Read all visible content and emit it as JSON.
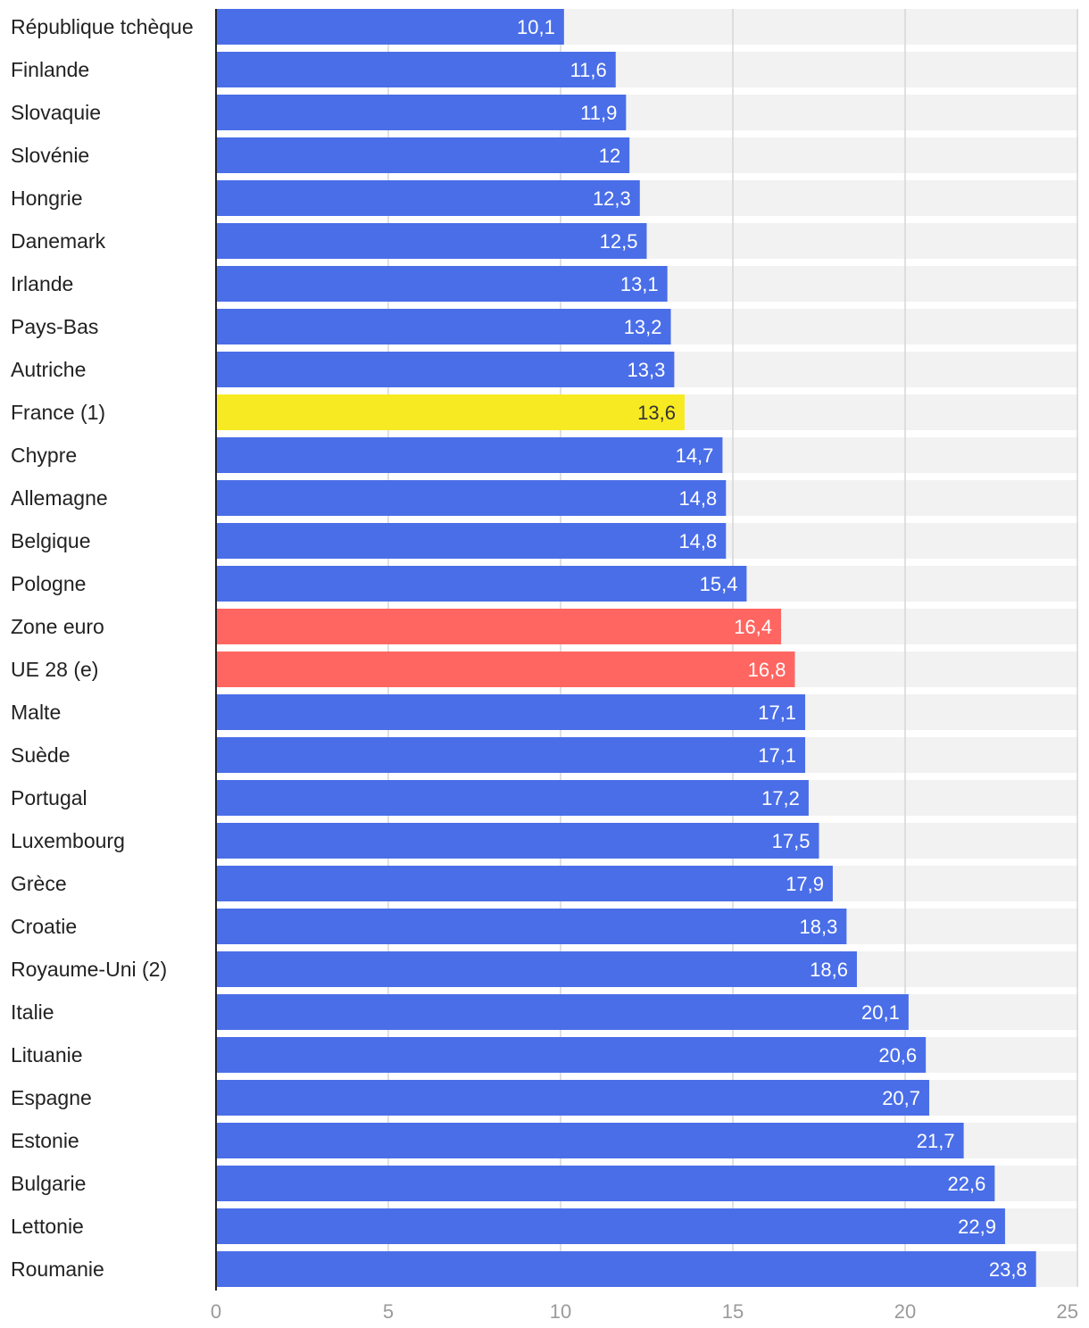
{
  "chart_data": {
    "type": "bar",
    "orientation": "horizontal",
    "title": "",
    "xlabel": "",
    "ylabel": "",
    "xlim": [
      0,
      25
    ],
    "xticks": [
      0,
      5,
      10,
      15,
      20,
      25
    ],
    "xtick_labels": [
      "0",
      "5",
      "10",
      "15",
      "20",
      "25"
    ],
    "grid": true,
    "colors": {
      "default": "#4a6ee8",
      "highlight_france": "#f8ea22",
      "highlight_aggregate": "#ff6661",
      "track": "#f2f2f2",
      "gridline": "#d6d6d6",
      "axis": "#222222"
    },
    "bars": [
      {
        "category": "République tchèque",
        "value": 10.1,
        "label": "10,1",
        "color_key": "default"
      },
      {
        "category": "Finlande",
        "value": 11.6,
        "label": "11,6",
        "color_key": "default"
      },
      {
        "category": "Slovaquie",
        "value": 11.9,
        "label": "11,9",
        "color_key": "default"
      },
      {
        "category": "Slovénie",
        "value": 12,
        "label": "12",
        "color_key": "default"
      },
      {
        "category": "Hongrie",
        "value": 12.3,
        "label": "12,3",
        "color_key": "default"
      },
      {
        "category": "Danemark",
        "value": 12.5,
        "label": "12,5",
        "color_key": "default"
      },
      {
        "category": "Irlande",
        "value": 13.1,
        "label": "13,1",
        "color_key": "default"
      },
      {
        "category": "Pays-Bas",
        "value": 13.2,
        "label": "13,2",
        "color_key": "default"
      },
      {
        "category": "Autriche",
        "value": 13.3,
        "label": "13,3",
        "color_key": "default"
      },
      {
        "category": "France (1)",
        "value": 13.6,
        "label": "13,6",
        "color_key": "highlight_france"
      },
      {
        "category": "Chypre",
        "value": 14.7,
        "label": "14,7",
        "color_key": "default"
      },
      {
        "category": "Allemagne",
        "value": 14.8,
        "label": "14,8",
        "color_key": "default"
      },
      {
        "category": "Belgique",
        "value": 14.8,
        "label": "14,8",
        "color_key": "default"
      },
      {
        "category": "Pologne",
        "value": 15.4,
        "label": "15,4",
        "color_key": "default"
      },
      {
        "category": "Zone euro",
        "value": 16.4,
        "label": "16,4",
        "color_key": "highlight_aggregate"
      },
      {
        "category": "UE 28 (e)",
        "value": 16.8,
        "label": "16,8",
        "color_key": "highlight_aggregate"
      },
      {
        "category": "Malte",
        "value": 17.1,
        "label": "17,1",
        "color_key": "default"
      },
      {
        "category": "Suède",
        "value": 17.1,
        "label": "17,1",
        "color_key": "default"
      },
      {
        "category": "Portugal",
        "value": 17.2,
        "label": "17,2",
        "color_key": "default"
      },
      {
        "category": "Luxembourg",
        "value": 17.5,
        "label": "17,5",
        "color_key": "default"
      },
      {
        "category": "Grèce",
        "value": 17.9,
        "label": "17,9",
        "color_key": "default"
      },
      {
        "category": "Croatie",
        "value": 18.3,
        "label": "18,3",
        "color_key": "default"
      },
      {
        "category": "Royaume-Uni (2)",
        "value": 18.6,
        "label": "18,6",
        "color_key": "default"
      },
      {
        "category": "Italie",
        "value": 20.1,
        "label": "20,1",
        "color_key": "default"
      },
      {
        "category": "Lituanie",
        "value": 20.6,
        "label": "20,6",
        "color_key": "default"
      },
      {
        "category": "Espagne",
        "value": 20.7,
        "label": "20,7",
        "color_key": "default"
      },
      {
        "category": "Estonie",
        "value": 21.7,
        "label": "21,7",
        "color_key": "default"
      },
      {
        "category": "Bulgarie",
        "value": 22.6,
        "label": "22,6",
        "color_key": "default"
      },
      {
        "category": "Lettonie",
        "value": 22.9,
        "label": "22,9",
        "color_key": "default"
      },
      {
        "category": "Roumanie",
        "value": 23.8,
        "label": "23,8",
        "color_key": "default"
      }
    ]
  }
}
